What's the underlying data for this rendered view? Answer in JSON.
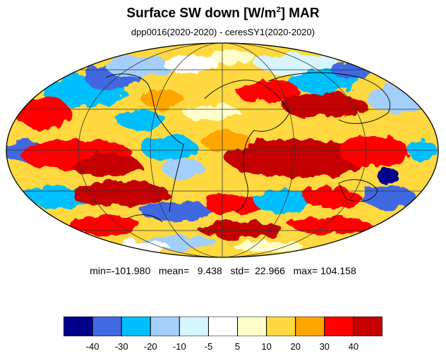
{
  "header": {
    "title_main": "Surface SW down [W/m",
    "title_sup": "2",
    "title_tail": "]  MAR",
    "subtitle": "dpp0016(2020-2020) - ceresSY1(2020-2020)"
  },
  "stats": {
    "text": "min=-101.980   mean=   9.438   std=  22.966   max= 104.158",
    "min": -101.98,
    "mean": 9.438,
    "std": 22.966,
    "max": 104.158
  },
  "colorbar": {
    "colors": [
      "#00008b",
      "#4169e1",
      "#00bfff",
      "#a3cffa",
      "#d6f5ff",
      "#ffffff",
      "#ffffcc",
      "#ffd93f",
      "#ffa500",
      "#ff0000",
      "#c40000"
    ],
    "boundaries": [
      "-40",
      "-30",
      "-20",
      "-10",
      "-5",
      "5",
      "10",
      "20",
      "30",
      "40"
    ]
  },
  "map": {
    "projection": "Mollweide",
    "grid": true,
    "coastlines": true
  }
}
